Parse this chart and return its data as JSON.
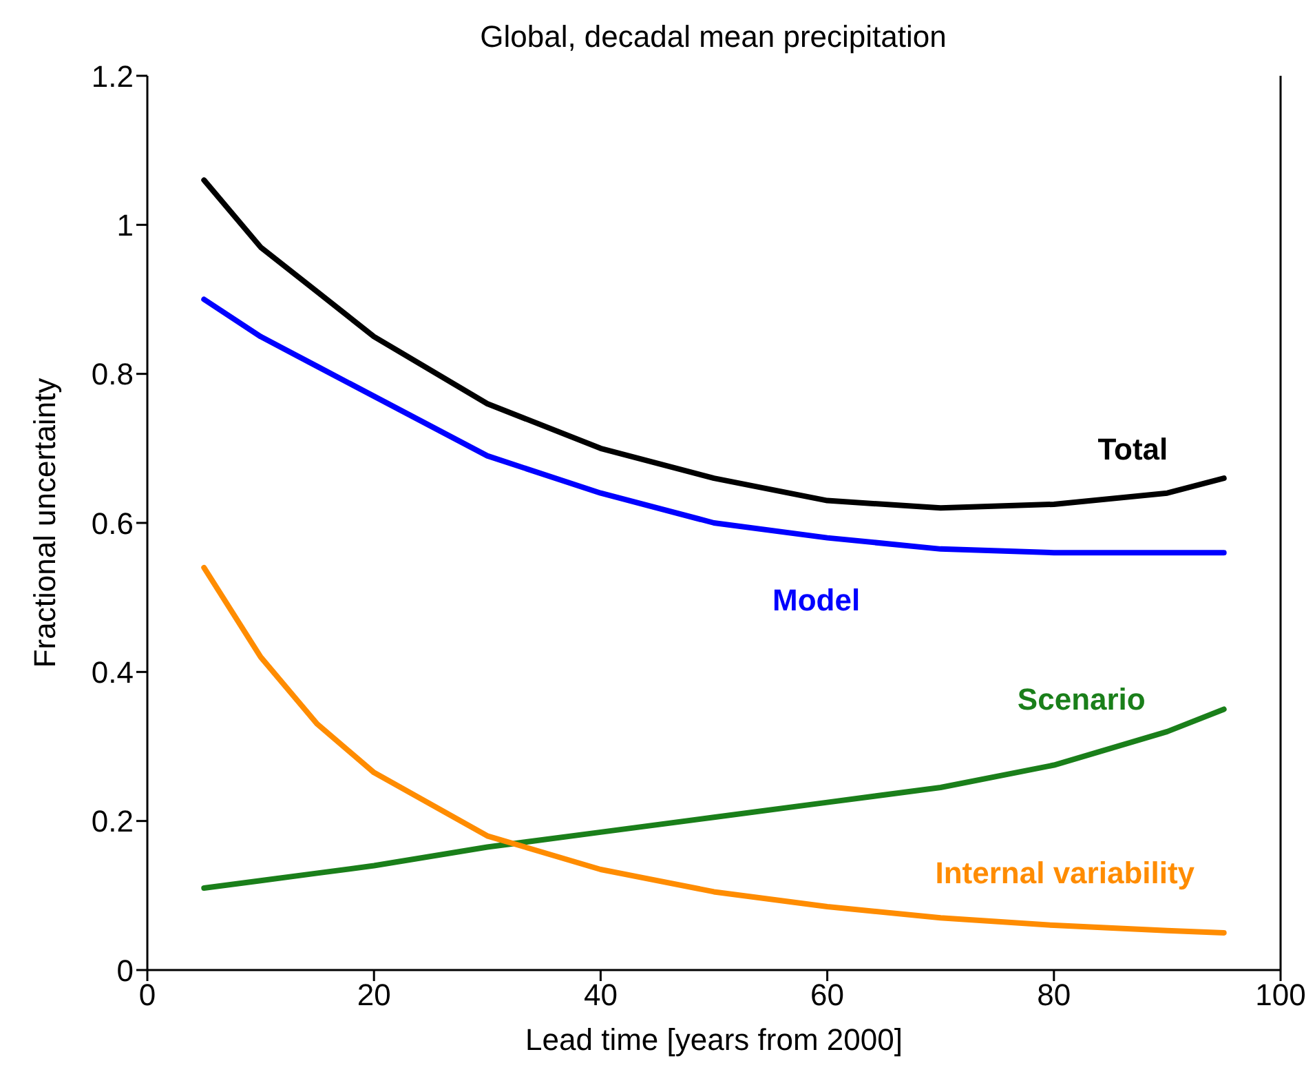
{
  "chart_data": {
    "type": "line",
    "title": "Global, decadal mean precipitation",
    "xlabel": "Lead time  [years from 2000]",
    "ylabel": "Fractional uncertainty",
    "x": [
      5,
      10,
      15,
      20,
      30,
      40,
      50,
      60,
      70,
      80,
      90,
      95
    ],
    "series": [
      {
        "name": "Total",
        "color": "#000000",
        "values": [
          1.06,
          0.97,
          0.91,
          0.85,
          0.76,
          0.7,
          0.66,
          0.63,
          0.62,
          0.625,
          0.64,
          0.66
        ]
      },
      {
        "name": "Model",
        "color": "#0000ff",
        "values": [
          0.9,
          0.85,
          0.81,
          0.77,
          0.69,
          0.64,
          0.6,
          0.58,
          0.565,
          0.56,
          0.56,
          0.56
        ]
      },
      {
        "name": "Scenario",
        "color": "#1a7f1a",
        "values": [
          0.11,
          0.12,
          0.13,
          0.14,
          0.165,
          0.185,
          0.205,
          0.225,
          0.245,
          0.275,
          0.32,
          0.35
        ]
      },
      {
        "name": "Internal variability",
        "color": "#ff8c00",
        "values": [
          0.54,
          0.42,
          0.33,
          0.265,
          0.18,
          0.135,
          0.105,
          0.085,
          0.07,
          0.06,
          0.053,
          0.05
        ]
      }
    ],
    "xlim": [
      0,
      100
    ],
    "xticks": [
      0,
      20,
      40,
      60,
      80,
      100
    ],
    "ylim": [
      0,
      1.2
    ],
    "yticks": [
      0,
      {
        "value": 0.2,
        "label": "0.2"
      },
      {
        "value": 0.4,
        "label": "0.4"
      },
      {
        "value": 0.6,
        "label": "0.6"
      },
      {
        "value": 0.8,
        "label": "0.8"
      },
      1,
      {
        "value": 1.2,
        "label": "1.2"
      }
    ],
    "grid": false,
    "legend": false,
    "marker": "none",
    "line_style": "solid"
  }
}
